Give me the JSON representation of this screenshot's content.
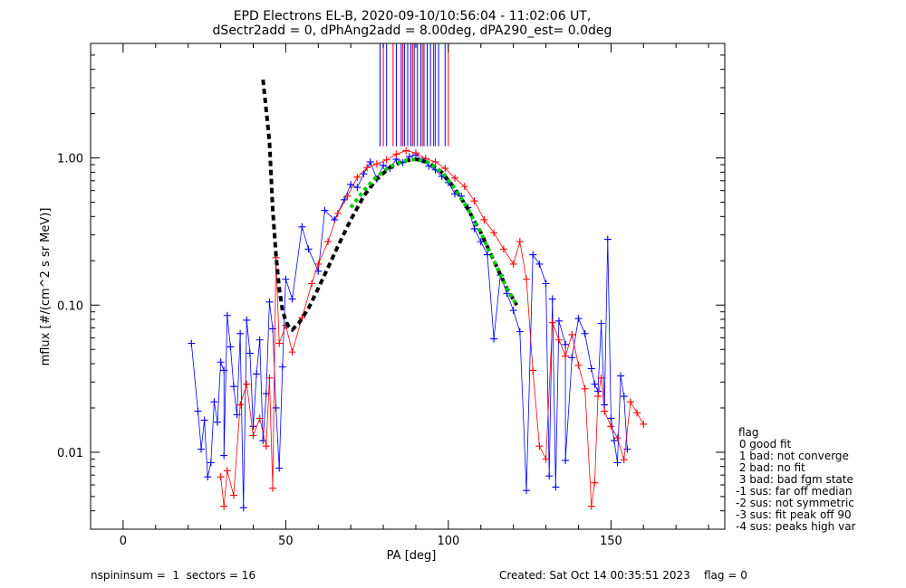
{
  "chart_data": {
    "type": "scatter",
    "title": "EPD Electrons EL-B, 2020-09-10/10:56:04 - 11:02:06 UT,",
    "subtitle": "dSectr2add = 0, dPhAng2add = 8.00deg, dPA290_est=    0.0deg",
    "xlabel": "PA [deg]",
    "ylabel": "mflux [#/(cm^2 s sr MeV)]",
    "xlim": [
      -10,
      185
    ],
    "ylim": [
      0.003,
      6.0
    ],
    "yscale": "log",
    "xticks": [
      0,
      50,
      100,
      150
    ],
    "xtick_labels": [
      "0",
      "50",
      "100",
      "150"
    ],
    "yticks": [
      0.01,
      0.1,
      1.0
    ],
    "ytick_labels": [
      "0.01",
      "0.10",
      "1.00"
    ],
    "grid": false,
    "series": [
      {
        "color": "#0000ff",
        "marker": "plus",
        "points": [
          [
            21,
            0.055
          ],
          [
            23,
            0.019
          ],
          [
            24,
            0.0105
          ],
          [
            25,
            0.0165
          ],
          [
            26,
            0.0068
          ],
          [
            27,
            0.0085
          ],
          [
            28,
            0.022
          ],
          [
            29,
            0.016
          ],
          [
            30,
            0.041
          ],
          [
            31,
            0.036
          ],
          [
            31,
            0.0095
          ],
          [
            32,
            0.085
          ],
          [
            33,
            0.052
          ],
          [
            34,
            0.028
          ],
          [
            35,
            0.018
          ],
          [
            36,
            0.064
          ],
          [
            37,
            0.0042
          ],
          [
            38,
            0.079
          ],
          [
            39,
            0.047
          ],
          [
            40,
            0.015
          ],
          [
            41,
            0.034
          ],
          [
            42,
            0.058
          ],
          [
            43,
            0.012
          ],
          [
            44,
            0.025
          ],
          [
            45,
            0.105
          ],
          [
            46,
            0.069
          ],
          [
            47,
            0.02
          ],
          [
            48,
            0.0078
          ],
          [
            49,
            0.038
          ],
          [
            50,
            0.15
          ],
          [
            52,
            0.11
          ],
          [
            55,
            0.34
          ],
          [
            57,
            0.24
          ],
          [
            60,
            0.17
          ],
          [
            62,
            0.44
          ],
          [
            65,
            0.38
          ],
          [
            68,
            0.52
          ],
          [
            70,
            0.66
          ],
          [
            72,
            0.63
          ],
          [
            74,
            0.78
          ],
          [
            76,
            0.94
          ],
          [
            78,
            0.72
          ],
          [
            80,
            0.89
          ],
          [
            82,
            0.85
          ],
          [
            84,
            0.98
          ],
          [
            86,
            0.93
          ],
          [
            88,
            1.02
          ],
          [
            90,
            1.05
          ],
          [
            92,
            0.97
          ],
          [
            94,
            0.88
          ],
          [
            96,
            0.83
          ],
          [
            98,
            0.75
          ],
          [
            100,
            0.68
          ],
          [
            102,
            0.57
          ],
          [
            104,
            0.55
          ],
          [
            106,
            0.46
          ],
          [
            108,
            0.33
          ],
          [
            110,
            0.27
          ],
          [
            112,
            0.22
          ],
          [
            114,
            0.059
          ],
          [
            116,
            0.16
          ],
          [
            118,
            0.12
          ],
          [
            120,
            0.092
          ],
          [
            122,
            0.066
          ],
          [
            124,
            0.0055
          ],
          [
            126,
            0.22
          ],
          [
            128,
            0.19
          ],
          [
            130,
            0.14
          ],
          [
            132,
            0.11
          ],
          [
            134,
            0.078
          ],
          [
            136,
            0.054
          ],
          [
            138,
            0.044
          ],
          [
            140,
            0.081
          ],
          [
            142,
            0.064
          ],
          [
            144,
            0.037
          ],
          [
            145,
            0.029
          ],
          [
            146,
            0.026
          ],
          [
            147,
            0.075
          ],
          [
            148,
            0.021
          ],
          [
            149,
            0.28
          ],
          [
            150,
            0.017
          ],
          [
            151,
            0.012
          ],
          [
            152,
            0.0085
          ],
          [
            153,
            0.033
          ],
          [
            154,
            0.024
          ],
          [
            155,
            0.0105
          ],
          [
            131,
            0.0069
          ],
          [
            133,
            0.0058
          ],
          [
            136,
            0.0088
          ]
        ]
      },
      {
        "color": "#ff0000",
        "marker": "plus",
        "points": [
          [
            30,
            0.0068
          ],
          [
            31,
            0.0043
          ],
          [
            32,
            0.0075
          ],
          [
            34,
            0.0051
          ],
          [
            36,
            0.021
          ],
          [
            38,
            0.029
          ],
          [
            40,
            0.013
          ],
          [
            42,
            0.017
          ],
          [
            44,
            0.011
          ],
          [
            45,
            0.032
          ],
          [
            46,
            0.0057
          ],
          [
            47,
            0.21
          ],
          [
            48,
            0.055
          ],
          [
            50,
            0.073
          ],
          [
            52,
            0.048
          ],
          [
            55,
            0.082
          ],
          [
            58,
            0.14
          ],
          [
            60,
            0.19
          ],
          [
            63,
            0.27
          ],
          [
            66,
            0.42
          ],
          [
            69,
            0.55
          ],
          [
            72,
            0.74
          ],
          [
            75,
            0.86
          ],
          [
            78,
            0.91
          ],
          [
            81,
            0.97
          ],
          [
            84,
            1.06
          ],
          [
            87,
            1.12
          ],
          [
            90,
            1.08
          ],
          [
            93,
            0.99
          ],
          [
            96,
            0.94
          ],
          [
            99,
            0.85
          ],
          [
            102,
            0.73
          ],
          [
            105,
            0.64
          ],
          [
            108,
            0.51
          ],
          [
            111,
            0.38
          ],
          [
            114,
            0.31
          ],
          [
            117,
            0.24
          ],
          [
            120,
            0.19
          ],
          [
            122,
            0.27
          ],
          [
            124,
            0.15
          ],
          [
            126,
            0.036
          ],
          [
            128,
            0.011
          ],
          [
            130,
            0.009
          ],
          [
            132,
            0.076
          ],
          [
            134,
            0.058
          ],
          [
            136,
            0.045
          ],
          [
            138,
            0.063
          ],
          [
            140,
            0.039
          ],
          [
            142,
            0.027
          ],
          [
            144,
            0.0043
          ],
          [
            146,
            0.024
          ],
          [
            148,
            0.019
          ],
          [
            150,
            0.015
          ],
          [
            152,
            0.0125
          ],
          [
            154,
            0.0089
          ],
          [
            156,
            0.022
          ],
          [
            158,
            0.0185
          ],
          [
            160,
            0.0155
          ],
          [
            145,
            0.0062
          ],
          [
            147,
            0.032
          ]
        ]
      }
    ],
    "fit_curves": [
      {
        "color": "#000000",
        "style": "dashed",
        "x": [
          43,
          45,
          46,
          47,
          48,
          49,
          50,
          51,
          52,
          54,
          57,
          60,
          63,
          66,
          70,
          74,
          78,
          82,
          86,
          90,
          94,
          98,
          102,
          106,
          110,
          114,
          118,
          121
        ],
        "y": [
          3.4,
          1.3,
          0.45,
          0.22,
          0.13,
          0.092,
          0.078,
          0.071,
          0.068,
          0.075,
          0.095,
          0.13,
          0.18,
          0.25,
          0.38,
          0.55,
          0.72,
          0.86,
          0.95,
          0.98,
          0.93,
          0.8,
          0.62,
          0.45,
          0.31,
          0.2,
          0.13,
          0.1
        ]
      },
      {
        "color": "#00cc00",
        "style": "dotted",
        "x": [
          70,
          74,
          78,
          82,
          86,
          90,
          94,
          98,
          102,
          106,
          110,
          114,
          118,
          121
        ],
        "y": [
          0.46,
          0.6,
          0.75,
          0.87,
          0.95,
          0.98,
          0.93,
          0.8,
          0.62,
          0.45,
          0.31,
          0.2,
          0.13,
          0.1
        ]
      }
    ],
    "vertical_lines": [
      {
        "color": "#0000ff",
        "x": [
          79,
          81,
          84,
          85.5,
          86.5,
          87.5,
          88.5,
          89.5,
          90.5,
          91.5,
          92.5,
          93.5,
          94.5,
          95.5,
          97,
          99
        ]
      },
      {
        "color": "#ff0000",
        "x": [
          80,
          83,
          86,
          89,
          92,
          96,
          100
        ]
      }
    ],
    "legend": {
      "title": "flag",
      "entries": [
        " 0 good fit",
        " 1 bad: not converge",
        " 2 bad: no fit",
        " 3 bad: bad fgm state",
        "-1 sus: far off median",
        "-2 sus: not symmetric",
        "-3 sus: fit peak off 90",
        "-4 sus: peaks high var"
      ],
      "position": "bottom-right"
    }
  },
  "footer": {
    "left": "nspininsum =  1  sectors = 16",
    "right": "Created: Sat Oct 14 00:35:51 2023    flag = 0"
  }
}
